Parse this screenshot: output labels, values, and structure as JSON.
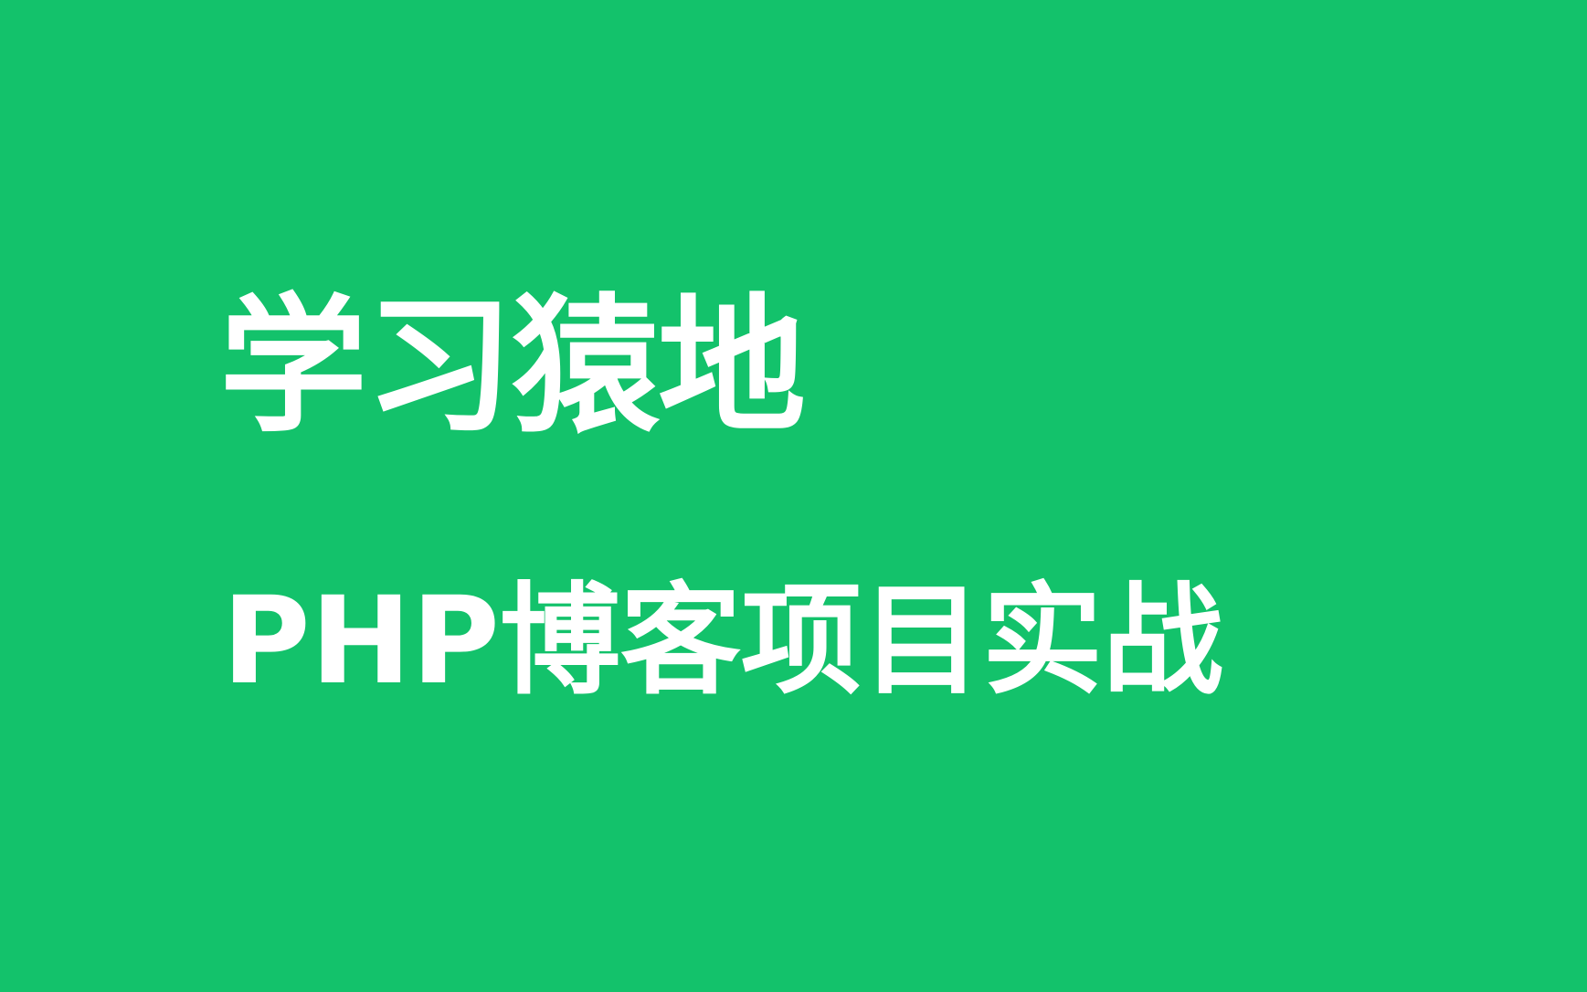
{
  "cover": {
    "brand": "学习猿地",
    "course_title": "PHP博客项目实战",
    "background_color": "#13c26b",
    "text_color": "#ffffff"
  }
}
